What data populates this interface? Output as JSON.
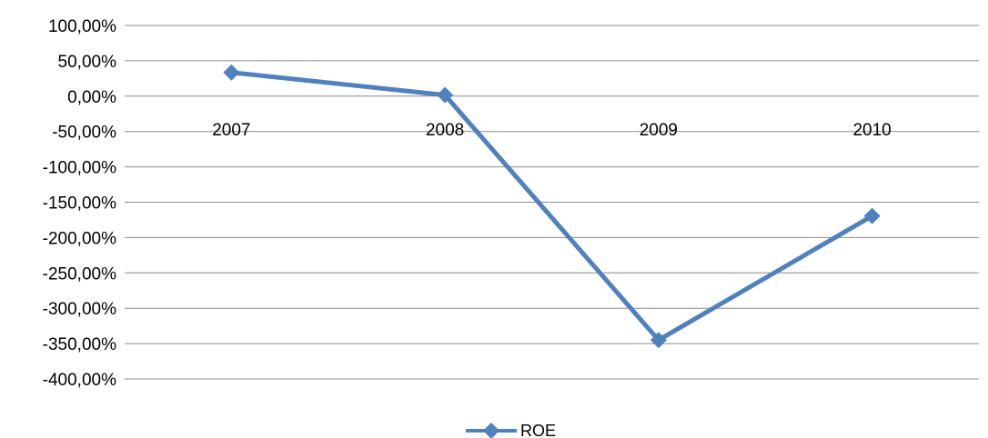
{
  "chart_data": {
    "type": "line",
    "title": "",
    "xlabel": "",
    "ylabel": "",
    "categories": [
      "2007",
      "2008",
      "2009",
      "2010"
    ],
    "series": [
      {
        "name": "ROE",
        "values": [
          33.5,
          1.5,
          -345.0,
          -169.5
        ]
      }
    ],
    "ylim": [
      -400,
      100
    ],
    "ytick_step": 50,
    "ytick_labels": [
      "100,00%",
      "50,00%",
      "0,00%",
      "-50,00%",
      "-100,00%",
      "-150,00%",
      "-200,00%",
      "-250,00%",
      "-300,00%",
      "-350,00%",
      "-400,00%"
    ],
    "grid": true,
    "legend_position": "bottom",
    "series_color": "#4f81bd",
    "marker": "diamond"
  }
}
